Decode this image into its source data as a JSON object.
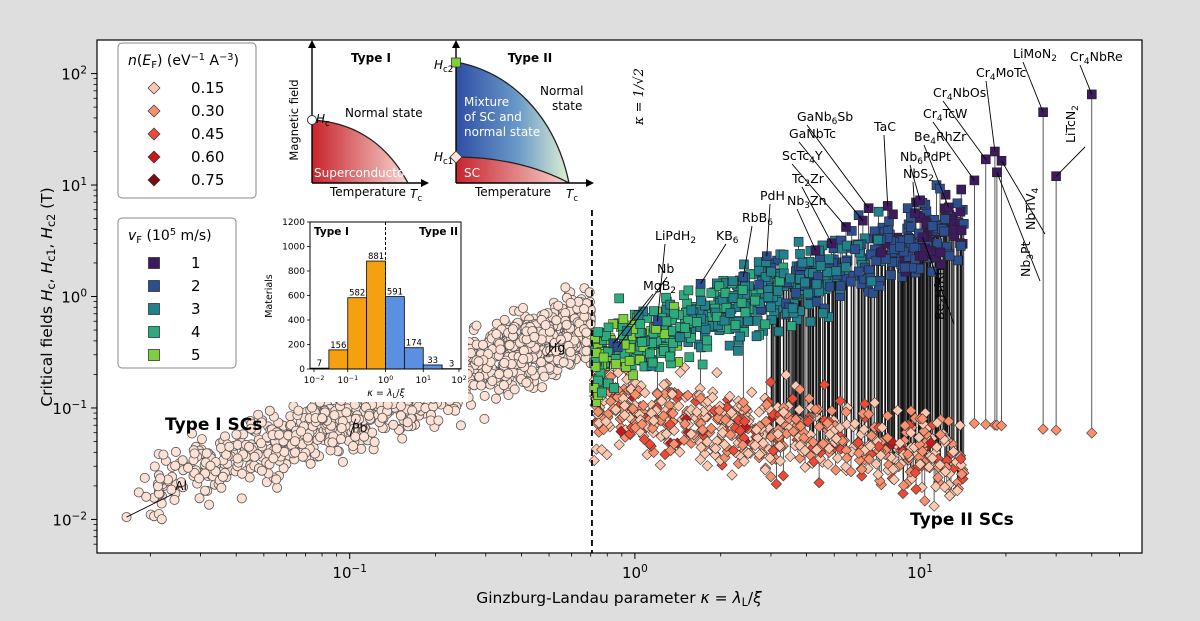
{
  "chart_data": {
    "type": "scatter",
    "xlabel": "Ginzburg-Landau parameter κ = λL/ξ",
    "ylabel": "Critical fields Hc, Hc1, Hc2 (T)",
    "xscale": "log",
    "yscale": "log",
    "xlim": [
      0.013,
      60
    ],
    "ylim": [
      0.005,
      200
    ],
    "x_ticks": [
      {
        "v": 0.1,
        "label": "10",
        "exp": "−1"
      },
      {
        "v": 1,
        "label": "10",
        "exp": "0"
      },
      {
        "v": 10,
        "label": "10",
        "exp": "1"
      }
    ],
    "y_ticks": [
      {
        "v": 0.01,
        "label": "10",
        "exp": "−2"
      },
      {
        "v": 0.1,
        "label": "10",
        "exp": "−1"
      },
      {
        "v": 1,
        "label": "10",
        "exp": "0"
      },
      {
        "v": 10,
        "label": "10",
        "exp": "1"
      },
      {
        "v": 100,
        "label": "10",
        "exp": "2"
      }
    ],
    "divider": {
      "x": 0.7071,
      "label": "κ = 1/√2"
    },
    "region_labels": {
      "type1": "Type I SCs",
      "type2": "Type II SCs"
    },
    "named_points": [
      {
        "name": "Al",
        "x": 0.0165,
        "y": 0.0105,
        "kind": "circle"
      },
      {
        "name": "Pb",
        "x": 0.105,
        "y": 0.08,
        "kind": "circle"
      },
      {
        "name": "Hg",
        "x": 0.55,
        "y": 0.41,
        "kind": "circle"
      },
      {
        "name": "MgB2",
        "x": 0.84,
        "y": 0.38,
        "kind": "square"
      },
      {
        "name": "Nb",
        "x": 0.87,
        "y": 0.35,
        "kind": "square"
      },
      {
        "name": "LiPdH2",
        "x": 1.2,
        "y": 0.6,
        "kind": "square"
      },
      {
        "name": "KB6",
        "x": 1.7,
        "y": 1.3,
        "kind": "square"
      },
      {
        "name": "RbB6",
        "x": 2.4,
        "y": 1.5,
        "kind": "square"
      },
      {
        "name": "PdH",
        "x": 2.9,
        "y": 2.3,
        "kind": "square"
      },
      {
        "name": "Nb3Zn",
        "x": 4.3,
        "y": 2.6,
        "kind": "square"
      },
      {
        "name": "Tc2Zr",
        "x": 4.9,
        "y": 3.0,
        "kind": "square"
      },
      {
        "name": "ScTc4Y",
        "x": 5.5,
        "y": 4.2,
        "kind": "square"
      },
      {
        "name": "GaNbTc",
        "x": 6.3,
        "y": 4.8,
        "kind": "square"
      },
      {
        "name": "GaNb6Sb",
        "x": 6.6,
        "y": 6.2,
        "kind": "square"
      },
      {
        "name": "TaC",
        "x": 7.7,
        "y": 6.5,
        "kind": "square"
      },
      {
        "name": "NbS2",
        "x": 9.6,
        "y": 5.6,
        "kind": "square"
      },
      {
        "name": "Nb6PdPt",
        "x": 10.0,
        "y": 7.3,
        "kind": "square"
      },
      {
        "name": "Be4HfRh",
        "x": 10.2,
        "y": 3.4,
        "kind": "square"
      },
      {
        "name": "Be4RhZr",
        "x": 12.6,
        "y": 6.3,
        "kind": "square"
      },
      {
        "name": "Cr4TcW",
        "x": 15.5,
        "y": 11.0,
        "kind": "square"
      },
      {
        "name": "Cr4NbOs",
        "x": 17.0,
        "y": 17.0,
        "kind": "square"
      },
      {
        "name": "Cr4MoTc",
        "x": 18.3,
        "y": 20.0,
        "kind": "square"
      },
      {
        "name": "Nb3Pt",
        "x": 18.6,
        "y": 13.0,
        "kind": "square"
      },
      {
        "name": "NbTiV4",
        "x": 19.3,
        "y": 16.5,
        "kind": "square"
      },
      {
        "name": "LiMoN2",
        "x": 27.0,
        "y": 45.0,
        "kind": "square"
      },
      {
        "name": "LiTcN2",
        "x": 30.0,
        "y": 12.0,
        "kind": "square"
      },
      {
        "name": "Cr4NbRe",
        "x": 40.0,
        "y": 65.0,
        "kind": "square"
      }
    ],
    "legend_nEF": {
      "title": "n(EF) (eV−1 A−3)",
      "entries": [
        {
          "label": "0.15",
          "color": "#fcc9b0"
        },
        {
          "label": "0.30",
          "color": "#f9906d"
        },
        {
          "label": "0.45",
          "color": "#ef4a36"
        },
        {
          "label": "0.60",
          "color": "#c8181d"
        },
        {
          "label": "0.75",
          "color": "#7a0b12"
        }
      ]
    },
    "legend_vF": {
      "title": "vF (105 m/s)",
      "entries": [
        {
          "label": "1",
          "color": "#3e1a5e"
        },
        {
          "label": "2",
          "color": "#2c4f8f"
        },
        {
          "label": "3",
          "color": "#21818d"
        },
        {
          "label": "4",
          "color": "#2dab7f"
        },
        {
          "label": "5",
          "color": "#7fcf3c"
        }
      ]
    },
    "colors": {
      "type1_fill": "#fce1d4",
      "type1_edge": "#555555",
      "hc1_edge": "#333333",
      "line": "#111111"
    },
    "inset_phase": {
      "type1_title": "Type I",
      "type2_title": "Type II",
      "ylabel": "Magnetic field",
      "xlabel": "Temperature",
      "hc": "Hc",
      "hc1": "Hc1",
      "hc2": "Hc2",
      "tc": "Tc",
      "normal_state": "Normal state",
      "normal_state2": "Normal state",
      "superconductor": "Superconductor",
      "sc": "SC",
      "mixture": "Mixture of SC and normal state"
    },
    "inset_hist": {
      "type": "bar",
      "ylabel": "Materials",
      "xlabel": "κ = λL/ξ",
      "left_label": "Type I",
      "right_label": "Type II",
      "ylim": [
        0,
        1200
      ],
      "yticks": [
        0,
        200,
        400,
        600,
        800,
        1000,
        1200
      ],
      "xticks": [
        {
          "label": "10",
          "exp": "−2"
        },
        {
          "label": "10",
          "exp": "−1"
        },
        {
          "label": "10",
          "exp": "0"
        },
        {
          "label": "10",
          "exp": "1"
        },
        {
          "label": "10",
          "exp": "2"
        }
      ],
      "bins": [
        {
          "count": 7,
          "type": "I"
        },
        {
          "count": 156,
          "type": "I"
        },
        {
          "count": 582,
          "type": "I"
        },
        {
          "count": 881,
          "type": "I"
        },
        {
          "count": 591,
          "type": "II"
        },
        {
          "count": 174,
          "type": "II"
        },
        {
          "count": 33,
          "type": "II"
        },
        {
          "count": 3,
          "type": "II"
        }
      ],
      "colors": {
        "I": "#f5a011",
        "II": "#5b8fe0"
      }
    }
  }
}
